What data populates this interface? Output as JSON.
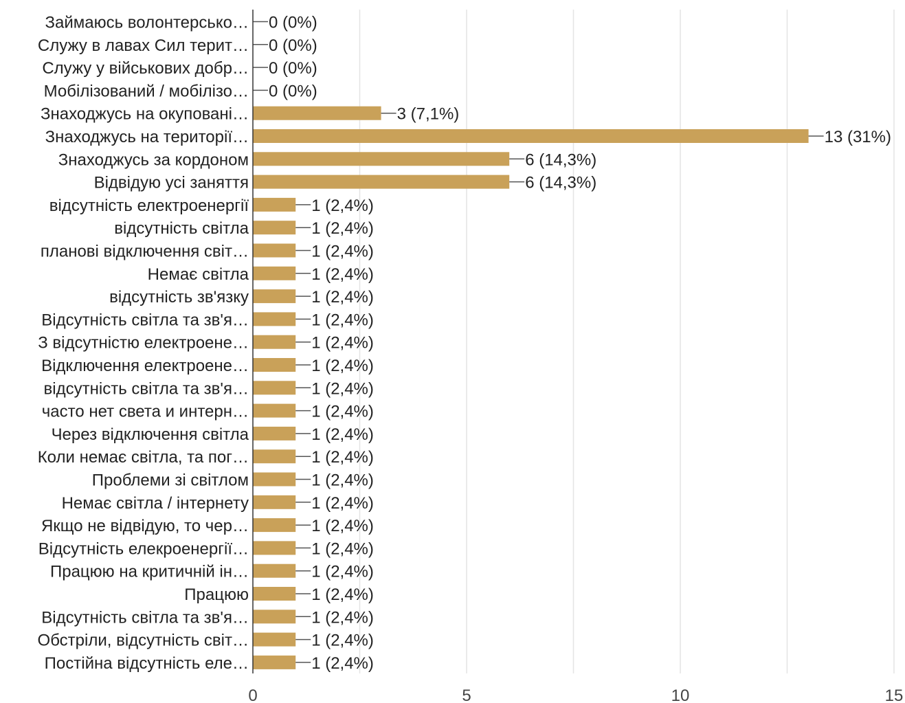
{
  "chart_data": {
    "type": "bar",
    "orientation": "horizontal",
    "categories": [
      "Займаюсь волонтерсько…",
      "Служу в лавах Сил терит…",
      "Служу у військових добр…",
      "Мобілізований / мобілізо…",
      "Знаходжусь на окуповані…",
      "Знаходжусь на території…",
      "Знаходжусь за кордоном",
      "Відвідую усі заняття",
      "відсутність електроенергії",
      "відсутність світла",
      "планові відключення світ…",
      "Немає світла",
      "відсутність зв'язку",
      "Відсутність світла та зв'я…",
      "З відсутністю електроене…",
      "Відключення електроене…",
      "відсутність світла та зв'я…",
      "часто нет света и интерн…",
      "Через відключення світла",
      "Коли немає світла, та пог…",
      "Проблеми зі світлом",
      "Немає світла / інтернету",
      "Якщо не відвідую, то чер…",
      "Відсутність елекроенергії…",
      "Працюю на критичній ін…",
      "Працюю",
      "Відсутність світла та зв'я…",
      "Обстріли, відсутність світ…",
      "Постійна відсутність еле…"
    ],
    "values": [
      0,
      0,
      0,
      0,
      3,
      13,
      6,
      6,
      1,
      1,
      1,
      1,
      1,
      1,
      1,
      1,
      1,
      1,
      1,
      1,
      1,
      1,
      1,
      1,
      1,
      1,
      1,
      1,
      1
    ],
    "value_labels": [
      "0 (0%)",
      "0 (0%)",
      "0 (0%)",
      "0 (0%)",
      "3 (7,1%)",
      "13 (31%)",
      "6 (14,3%)",
      "6 (14,3%)",
      "1 (2,4%)",
      "1 (2,4%)",
      "1 (2,4%)",
      "1 (2,4%)",
      "1 (2,4%)",
      "1 (2,4%)",
      "1 (2,4%)",
      "1 (2,4%)",
      "1 (2,4%)",
      "1 (2,4%)",
      "1 (2,4%)",
      "1 (2,4%)",
      "1 (2,4%)",
      "1 (2,4%)",
      "1 (2,4%)",
      "1 (2,4%)",
      "1 (2,4%)",
      "1 (2,4%)",
      "1 (2,4%)",
      "1 (2,4%)",
      "1 (2,4%)"
    ],
    "x_ticks": [
      0,
      5,
      10,
      15
    ],
    "x_tick_labels": [
      "0",
      "5",
      "10",
      "15"
    ],
    "xlim": [
      0,
      15
    ],
    "grid": true,
    "colors": {
      "bar": "#c9a159",
      "grid": "#e4e4e4",
      "axis": "#333333",
      "connector": "#555555"
    }
  }
}
